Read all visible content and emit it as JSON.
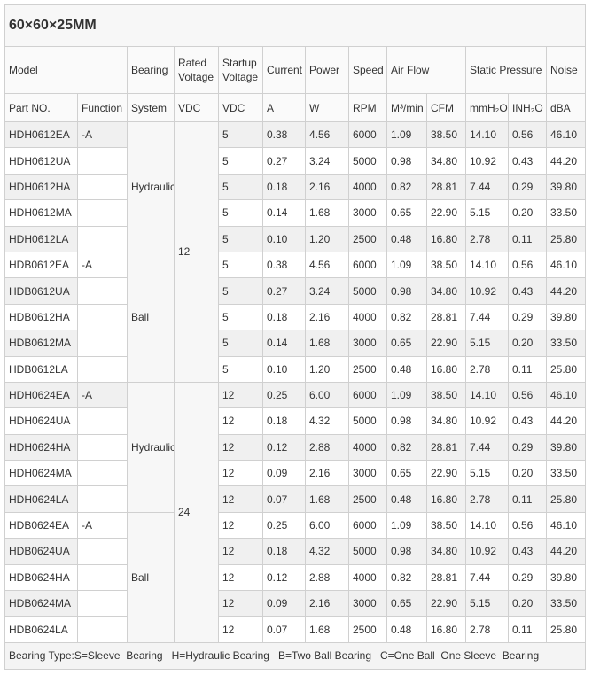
{
  "title": "60×60×25MM",
  "header_top": {
    "model": "Model",
    "bearing": "Bearing",
    "rated": "Rated Voltage",
    "startup": "Startup Voltage",
    "current": "Current",
    "power": "Power",
    "speed": "Speed",
    "airflow": "Air Flow",
    "pressure": "Static Pressure",
    "noise": "Noise"
  },
  "header_units": [
    "Part NO.",
    "Function",
    "System",
    "VDC",
    "VDC",
    "A",
    "W",
    "RPM",
    "M³/min",
    "CFM",
    "mmH₂O",
    "INH₂O",
    "dBA"
  ],
  "groups": [
    {
      "voltage": "12",
      "bearings": [
        {
          "system": "Hydraulic",
          "rows": [
            {
              "part": "HDH0612EA",
              "function": "-A",
              "startup": "5",
              "current": "0.38",
              "power": "4.56",
              "rpm": "6000",
              "m3min": "1.09",
              "cfm": "38.50",
              "mmh2o": "14.10",
              "inh2o": "0.56",
              "dba": "46.10"
            },
            {
              "part": "HDH0612UA",
              "startup": "5",
              "current": "0.27",
              "power": "3.24",
              "rpm": "5000",
              "m3min": "0.98",
              "cfm": "34.80",
              "mmh2o": "10.92",
              "inh2o": "0.43",
              "dba": "44.20"
            },
            {
              "part": "HDH0612HA",
              "startup": "5",
              "current": "0.18",
              "power": "2.16",
              "rpm": "4000",
              "m3min": "0.82",
              "cfm": "28.81",
              "mmh2o": "7.44",
              "inh2o": "0.29",
              "dba": "39.80"
            },
            {
              "part": "HDH0612MA",
              "startup": "5",
              "current": "0.14",
              "power": "1.68",
              "rpm": "3000",
              "m3min": "0.65",
              "cfm": "22.90",
              "mmh2o": "5.15",
              "inh2o": "0.20",
              "dba": "33.50"
            },
            {
              "part": "HDH0612LA",
              "startup": "5",
              "current": "0.10",
              "power": "1.20",
              "rpm": "2500",
              "m3min": "0.48",
              "cfm": "16.80",
              "mmh2o": "2.78",
              "inh2o": "0.11",
              "dba": "25.80"
            }
          ]
        },
        {
          "system": "Ball",
          "rows": [
            {
              "part": "HDB0612EA",
              "function": "-A",
              "startup": "5",
              "current": "0.38",
              "power": "4.56",
              "rpm": "6000",
              "m3min": "1.09",
              "cfm": "38.50",
              "mmh2o": "14.10",
              "inh2o": "0.56",
              "dba": "46.10"
            },
            {
              "part": "HDB0612UA",
              "startup": "5",
              "current": "0.27",
              "power": "3.24",
              "rpm": "5000",
              "m3min": "0.98",
              "cfm": "34.80",
              "mmh2o": "10.92",
              "inh2o": "0.43",
              "dba": "44.20"
            },
            {
              "part": "HDB0612HA",
              "startup": "5",
              "current": "0.18",
              "power": "2.16",
              "rpm": "4000",
              "m3min": "0.82",
              "cfm": "28.81",
              "mmh2o": "7.44",
              "inh2o": "0.29",
              "dba": "39.80"
            },
            {
              "part": "HDB0612MA",
              "startup": "5",
              "current": "0.14",
              "power": "1.68",
              "rpm": "3000",
              "m3min": "0.65",
              "cfm": "22.90",
              "mmh2o": "5.15",
              "inh2o": "0.20",
              "dba": "33.50"
            },
            {
              "part": "HDB0612LA",
              "startup": "5",
              "current": "0.10",
              "power": "1.20",
              "rpm": "2500",
              "m3min": "0.48",
              "cfm": "16.80",
              "mmh2o": "2.78",
              "inh2o": "0.11",
              "dba": "25.80"
            }
          ]
        }
      ]
    },
    {
      "voltage": "24",
      "bearings": [
        {
          "system": "Hydraulic",
          "rows": [
            {
              "part": "HDH0624EA",
              "function": "-A",
              "startup": "12",
              "current": "0.25",
              "power": "6.00",
              "rpm": "6000",
              "m3min": "1.09",
              "cfm": "38.50",
              "mmh2o": "14.10",
              "inh2o": "0.56",
              "dba": "46.10"
            },
            {
              "part": "HDH0624UA",
              "startup": "12",
              "current": "0.18",
              "power": "4.32",
              "rpm": "5000",
              "m3min": "0.98",
              "cfm": "34.80",
              "mmh2o": "10.92",
              "inh2o": "0.43",
              "dba": "44.20"
            },
            {
              "part": "HDH0624HA",
              "startup": "12",
              "current": "0.12",
              "power": "2.88",
              "rpm": "4000",
              "m3min": "0.82",
              "cfm": "28.81",
              "mmh2o": "7.44",
              "inh2o": "0.29",
              "dba": "39.80"
            },
            {
              "part": "HDH0624MA",
              "startup": "12",
              "current": "0.09",
              "power": "2.16",
              "rpm": "3000",
              "m3min": "0.65",
              "cfm": "22.90",
              "mmh2o": "5.15",
              "inh2o": "0.20",
              "dba": "33.50"
            },
            {
              "part": "HDH0624LA",
              "startup": "12",
              "current": "0.07",
              "power": "1.68",
              "rpm": "2500",
              "m3min": "0.48",
              "cfm": "16.80",
              "mmh2o": "2.78",
              "inh2o": "0.11",
              "dba": "25.80"
            }
          ]
        },
        {
          "system": "Ball",
          "rows": [
            {
              "part": "HDB0624EA",
              "function": "-A",
              "startup": "12",
              "current": "0.25",
              "power": "6.00",
              "rpm": "6000",
              "m3min": "1.09",
              "cfm": "38.50",
              "mmh2o": "14.10",
              "inh2o": "0.56",
              "dba": "46.10"
            },
            {
              "part": "HDB0624UA",
              "startup": "12",
              "current": "0.18",
              "power": "4.32",
              "rpm": "5000",
              "m3min": "0.98",
              "cfm": "34.80",
              "mmh2o": "10.92",
              "inh2o": "0.43",
              "dba": "44.20"
            },
            {
              "part": "HDB0624HA",
              "startup": "12",
              "current": "0.12",
              "power": "2.88",
              "rpm": "4000",
              "m3min": "0.82",
              "cfm": "28.81",
              "mmh2o": "7.44",
              "inh2o": "0.29",
              "dba": "39.80"
            },
            {
              "part": "HDB0624MA",
              "startup": "12",
              "current": "0.09",
              "power": "2.16",
              "rpm": "3000",
              "m3min": "0.65",
              "cfm": "22.90",
              "mmh2o": "5.15",
              "inh2o": "0.20",
              "dba": "33.50"
            },
            {
              "part": "HDB0624LA",
              "startup": "12",
              "current": "0.07",
              "power": "1.68",
              "rpm": "2500",
              "m3min": "0.48",
              "cfm": "16.80",
              "mmh2o": "2.78",
              "inh2o": "0.11",
              "dba": "25.80"
            }
          ]
        }
      ]
    }
  ],
  "footer": "Bearing Type:S=Sleeve  Bearing   H=Hydraulic Bearing   B=Two Ball Bearing   C=One Ball  One Sleeve  Bearing"
}
